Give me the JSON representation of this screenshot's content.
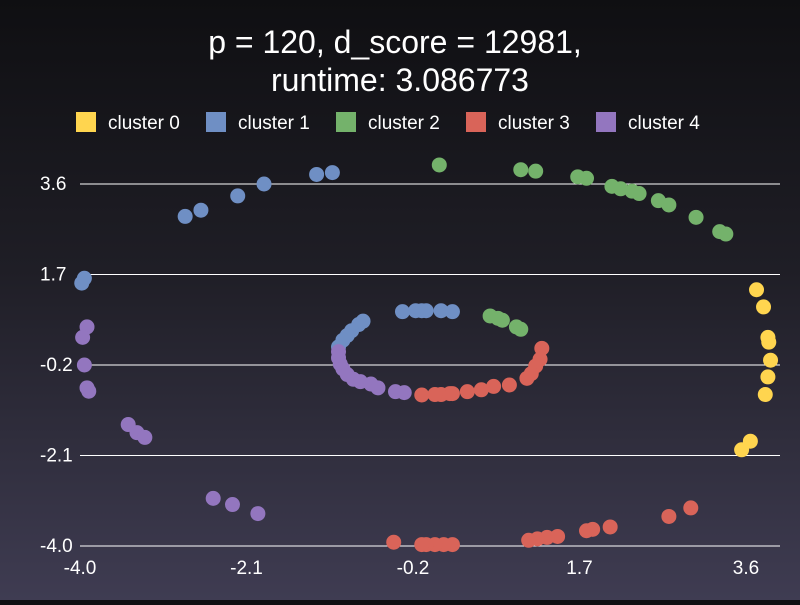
{
  "chart_data": {
    "type": "scatter",
    "title_line1": "p = 120, d_score = 12981,",
    "title_line2": "runtime: 3.086773",
    "xlabel": "",
    "ylabel": "",
    "xlim": [
      -4.0,
      3.6
    ],
    "ylim": [
      -4.0,
      3.6
    ],
    "x_ticks": [
      "-4.0",
      "-2.1",
      "-0.2",
      "1.7",
      "3.6"
    ],
    "y_ticks": [
      "3.6",
      "1.7",
      "-0.2",
      "-2.1",
      "-4.0"
    ],
    "grid": "horizontal",
    "legend_position": "top",
    "series": [
      {
        "name": "cluster 0",
        "color": "#ffd54f",
        "points": [
          [
            3.72,
            1.38
          ],
          [
            3.8,
            1.02
          ],
          [
            3.85,
            0.38
          ],
          [
            3.86,
            0.28
          ],
          [
            3.88,
            -0.1
          ],
          [
            3.85,
            -0.45
          ],
          [
            3.82,
            -0.82
          ],
          [
            3.65,
            -1.8
          ],
          [
            3.55,
            -1.98
          ]
        ]
      },
      {
        "name": "cluster 1",
        "color": "#6f8fc4",
        "points": [
          [
            -3.98,
            1.52
          ],
          [
            -3.95,
            1.62
          ],
          [
            -2.8,
            2.92
          ],
          [
            -2.62,
            3.05
          ],
          [
            -2.2,
            3.35
          ],
          [
            -1.9,
            3.6
          ],
          [
            -1.3,
            3.8
          ],
          [
            -1.12,
            3.84
          ],
          [
            -0.77,
            0.72
          ],
          [
            -0.82,
            0.65
          ],
          [
            -0.9,
            0.52
          ],
          [
            -0.95,
            0.42
          ],
          [
            -1.0,
            0.32
          ],
          [
            -1.05,
            0.18
          ],
          [
            -0.32,
            0.92
          ],
          [
            -0.17,
            0.94
          ],
          [
            -0.1,
            0.94
          ],
          [
            -0.05,
            0.94
          ],
          [
            0.12,
            0.94
          ],
          [
            0.25,
            0.92
          ]
        ]
      },
      {
        "name": "cluster 2",
        "color": "#74b26b",
        "points": [
          [
            0.1,
            4.0
          ],
          [
            1.03,
            3.9
          ],
          [
            1.2,
            3.87
          ],
          [
            1.68,
            3.75
          ],
          [
            1.78,
            3.72
          ],
          [
            2.07,
            3.55
          ],
          [
            2.17,
            3.5
          ],
          [
            2.3,
            3.45
          ],
          [
            2.38,
            3.4
          ],
          [
            2.6,
            3.25
          ],
          [
            2.72,
            3.16
          ],
          [
            3.03,
            2.9
          ],
          [
            3.3,
            2.6
          ],
          [
            3.37,
            2.55
          ],
          [
            0.68,
            0.83
          ],
          [
            0.77,
            0.78
          ],
          [
            0.82,
            0.74
          ],
          [
            0.98,
            0.6
          ],
          [
            1.03,
            0.55
          ]
        ]
      },
      {
        "name": "cluster 3",
        "color": "#d96459",
        "points": [
          [
            1.27,
            0.15
          ],
          [
            1.25,
            -0.08
          ],
          [
            1.2,
            -0.22
          ],
          [
            1.15,
            -0.38
          ],
          [
            1.1,
            -0.48
          ],
          [
            0.9,
            -0.62
          ],
          [
            0.72,
            -0.65
          ],
          [
            0.58,
            -0.72
          ],
          [
            0.42,
            -0.76
          ],
          [
            0.22,
            -0.8
          ],
          [
            0.12,
            -0.82
          ],
          [
            0.05,
            -0.82
          ],
          [
            -0.1,
            -0.83
          ],
          [
            0.25,
            -0.8
          ],
          [
            2.97,
            -3.2
          ],
          [
            2.72,
            -3.38
          ],
          [
            2.05,
            -3.6
          ],
          [
            1.85,
            -3.65
          ],
          [
            1.78,
            -3.68
          ],
          [
            1.45,
            -3.8
          ],
          [
            1.33,
            -3.82
          ],
          [
            1.22,
            -3.85
          ],
          [
            1.12,
            -3.88
          ],
          [
            0.25,
            -3.97
          ],
          [
            0.15,
            -3.97
          ],
          [
            0.05,
            -3.97
          ],
          [
            -0.05,
            -3.97
          ],
          [
            -0.1,
            -3.97
          ],
          [
            -0.42,
            -3.92
          ]
        ]
      },
      {
        "name": "cluster 4",
        "color": "#9376bf",
        "points": [
          [
            -3.92,
            0.6
          ],
          [
            -3.97,
            0.38
          ],
          [
            -3.95,
            -0.2
          ],
          [
            -3.92,
            -0.68
          ],
          [
            -3.9,
            -0.75
          ],
          [
            -3.45,
            -1.45
          ],
          [
            -3.35,
            -1.62
          ],
          [
            -3.26,
            -1.72
          ],
          [
            -2.48,
            -3.0
          ],
          [
            -2.26,
            -3.13
          ],
          [
            -1.97,
            -3.32
          ],
          [
            -1.05,
            0.08
          ],
          [
            -1.05,
            -0.05
          ],
          [
            -1.03,
            -0.18
          ],
          [
            -1.0,
            -0.28
          ],
          [
            -0.95,
            -0.4
          ],
          [
            -0.88,
            -0.5
          ],
          [
            -0.8,
            -0.55
          ],
          [
            -0.68,
            -0.6
          ],
          [
            -0.6,
            -0.68
          ],
          [
            -0.4,
            -0.76
          ],
          [
            -0.3,
            -0.78
          ]
        ]
      }
    ]
  }
}
